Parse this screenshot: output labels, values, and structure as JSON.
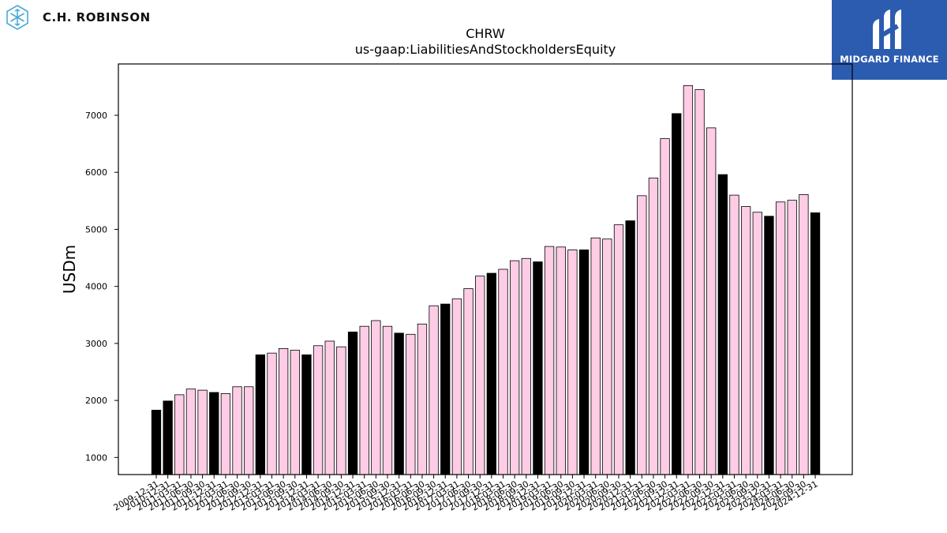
{
  "header": {
    "company_name": "C.H. ROBINSON",
    "brand_name": "MIDGARD FINANCE"
  },
  "colors": {
    "annual_bar": "#000000",
    "quarterly_bar": "#ffcce6",
    "brand_background": "#2c5cb0",
    "logo_blue": "#4aa8d8"
  },
  "icons": {
    "company_logo": "hexagon-cube-icon",
    "brand_logo": "midgard-m-icon"
  },
  "chart_data": {
    "type": "bar",
    "title": "CHRW",
    "subtitle": "us-gaap:LiabilitiesAndStockholdersEquity",
    "xlabel": "",
    "ylabel": "USDm",
    "ylim": [
      700,
      7900
    ],
    "yticks": [
      1000,
      2000,
      3000,
      4000,
      5000,
      6000,
      7000
    ],
    "grid": false,
    "categories": [
      "2009-12-31",
      "2010-12-31",
      "2011-03-31",
      "2011-06-30",
      "2011-09-30",
      "2011-12-31",
      "2012-03-31",
      "2012-06-30",
      "2012-09-30",
      "2012-12-31",
      "2013-03-31",
      "2013-06-30",
      "2013-09-30",
      "2013-12-31",
      "2014-03-31",
      "2014-06-30",
      "2014-09-30",
      "2014-12-31",
      "2015-03-31",
      "2015-06-30",
      "2015-09-30",
      "2015-12-31",
      "2016-03-31",
      "2016-06-30",
      "2016-09-30",
      "2016-12-31",
      "2017-03-31",
      "2017-06-30",
      "2017-09-30",
      "2017-12-31",
      "2018-03-31",
      "2018-06-30",
      "2018-09-30",
      "2018-12-31",
      "2019-03-31",
      "2019-06-30",
      "2019-09-30",
      "2019-12-31",
      "2020-03-31",
      "2020-06-30",
      "2020-09-30",
      "2020-12-31",
      "2021-03-31",
      "2021-06-30",
      "2021-09-30",
      "2021-12-31",
      "2022-03-31",
      "2022-06-30",
      "2022-09-30",
      "2022-12-31",
      "2023-03-31",
      "2023-06-30",
      "2023-09-30",
      "2023-12-31",
      "2024-03-31",
      "2024-06-30",
      "2024-09-30",
      "2024-12-31"
    ],
    "values": [
      1830,
      1990,
      2100,
      2200,
      2180,
      2140,
      2120,
      2240,
      2240,
      2800,
      2830,
      2910,
      2880,
      2800,
      2960,
      3040,
      2940,
      3200,
      3300,
      3400,
      3300,
      3180,
      3160,
      3340,
      3660,
      3690,
      3780,
      3960,
      4180,
      4230,
      4300,
      4450,
      4490,
      4430,
      4700,
      4690,
      4640,
      4640,
      4850,
      4830,
      5080,
      5150,
      5590,
      5900,
      6590,
      7030,
      7520,
      7450,
      6780,
      5960,
      5600,
      5400,
      5300,
      5230,
      5480,
      5510,
      5610,
      5290
    ],
    "annual": [
      true,
      true,
      false,
      false,
      false,
      true,
      false,
      false,
      false,
      true,
      false,
      false,
      false,
      true,
      false,
      false,
      false,
      true,
      false,
      false,
      false,
      true,
      false,
      false,
      false,
      true,
      false,
      false,
      false,
      true,
      false,
      false,
      false,
      true,
      false,
      false,
      false,
      true,
      false,
      false,
      false,
      true,
      false,
      false,
      false,
      true,
      false,
      false,
      false,
      true,
      false,
      false,
      false,
      true,
      false,
      false,
      false,
      true
    ]
  }
}
